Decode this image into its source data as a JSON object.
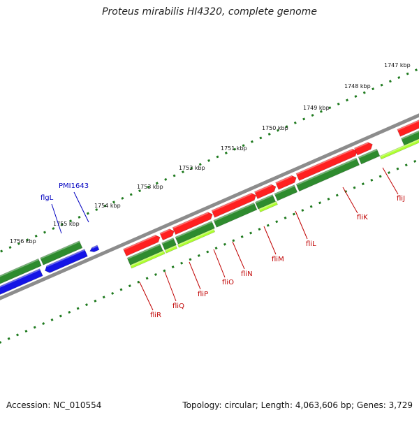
{
  "title": "Proteus mirabilis HI4320, complete genome",
  "footer": {
    "accession": "Accession: NC_010554",
    "topology": "Topology: circular; Length: 4,063,606 bp; Genes: 3,729"
  },
  "colors": {
    "backbone": "#8c8c8c",
    "ruler_ticks": "#1e7a1e",
    "forward_cds": "#ff2020",
    "forward_gene": "#2e8b2e",
    "reverse_cds": "#1414e6",
    "reverse_gene": "#2e8b2e",
    "highlight": "#adff2f",
    "label_red": "#c00000",
    "label_blue": "#0000c0"
  },
  "ruler_labels": [
    "1747 kbp",
    "1748 kbp",
    "1749 kbp",
    "1750 kbp",
    "1751 kbp",
    "1752 kbp",
    "1753 kbp",
    "1754 kbp",
    "1755 kbp",
    "1756 kbp"
  ],
  "gene_labels": [
    {
      "name": "fliJ",
      "strand": "forward"
    },
    {
      "name": "fliK",
      "strand": "forward"
    },
    {
      "name": "fliL",
      "strand": "forward"
    },
    {
      "name": "fliM",
      "strand": "forward"
    },
    {
      "name": "fliN",
      "strand": "forward"
    },
    {
      "name": "fliO",
      "strand": "forward"
    },
    {
      "name": "fliP",
      "strand": "forward"
    },
    {
      "name": "fliQ",
      "strand": "forward"
    },
    {
      "name": "fliR",
      "strand": "forward"
    },
    {
      "name": "flgL",
      "strand": "reverse"
    },
    {
      "name": "PMI1643",
      "strand": "reverse"
    }
  ]
}
